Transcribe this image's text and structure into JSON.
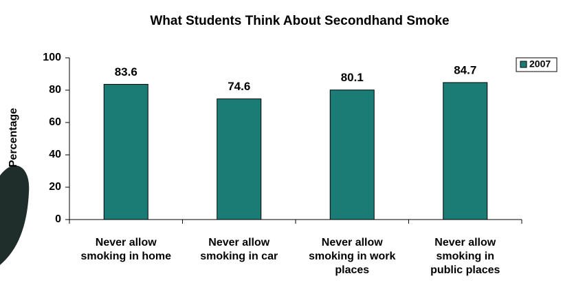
{
  "chart_data": {
    "type": "bar",
    "title": "What Students Think About Secondhand Smoke",
    "y_label": "Percentage",
    "categories": [
      "Never allow smoking in home",
      "Never allow smoking in car",
      "Never allow smoking in work places",
      "Never allow smoking in public places"
    ],
    "series": [
      {
        "name": "2007",
        "color": "#1b7c76",
        "values": [
          83.6,
          74.6,
          80.1,
          84.7
        ]
      }
    ],
    "ylim": [
      0,
      100
    ],
    "yticks": [
      0,
      20,
      40,
      60,
      80,
      100
    ],
    "grid": false
  }
}
